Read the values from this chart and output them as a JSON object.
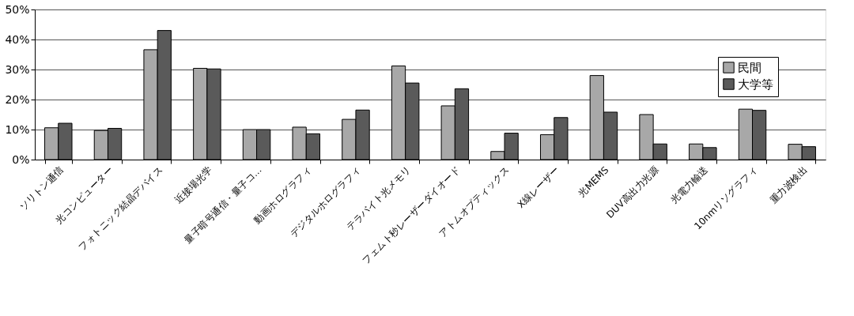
{
  "chart_data": {
    "type": "bar",
    "categories": [
      "ソリトン通信",
      "光コンピューター",
      "フォトニック結晶デバイス",
      "近接場光学",
      "量子暗号通信・量子コ...",
      "動画ホログラフィ",
      "デジタルホログラフィ",
      "テラバイト光メモリ",
      "フェムト秒レーザーダイオード",
      "アトムオプティックス",
      "X線レーザー",
      "光MEMS",
      "DUV高出力光源",
      "光電力輸送",
      "10nmリソグラフィ",
      "重力波検出"
    ],
    "series": [
      {
        "name": "民間",
        "color": "#a8a8a8",
        "values": [
          10.6,
          9.7,
          36.6,
          30.4,
          10.0,
          10.8,
          13.4,
          31.2,
          17.9,
          2.7,
          8.3,
          28.0,
          15.0,
          5.2,
          16.8,
          5.1
        ]
      },
      {
        "name": "大学等",
        "color": "#5a5a5a",
        "values": [
          12.1,
          10.4,
          43.0,
          30.2,
          10.0,
          8.6,
          16.5,
          25.5,
          23.6,
          8.8,
          14.0,
          15.8,
          5.2,
          4.0,
          16.4,
          4.3
        ]
      }
    ],
    "ylim": [
      0,
      50
    ],
    "yticks": [
      {
        "value": 0,
        "label": "0%"
      },
      {
        "value": 10,
        "label": "10%"
      },
      {
        "value": 20,
        "label": "20%"
      },
      {
        "value": 30,
        "label": "30%"
      },
      {
        "value": 40,
        "label": "40%"
      },
      {
        "value": 50,
        "label": "50%"
      }
    ],
    "grid": "y",
    "legend": "top right"
  }
}
